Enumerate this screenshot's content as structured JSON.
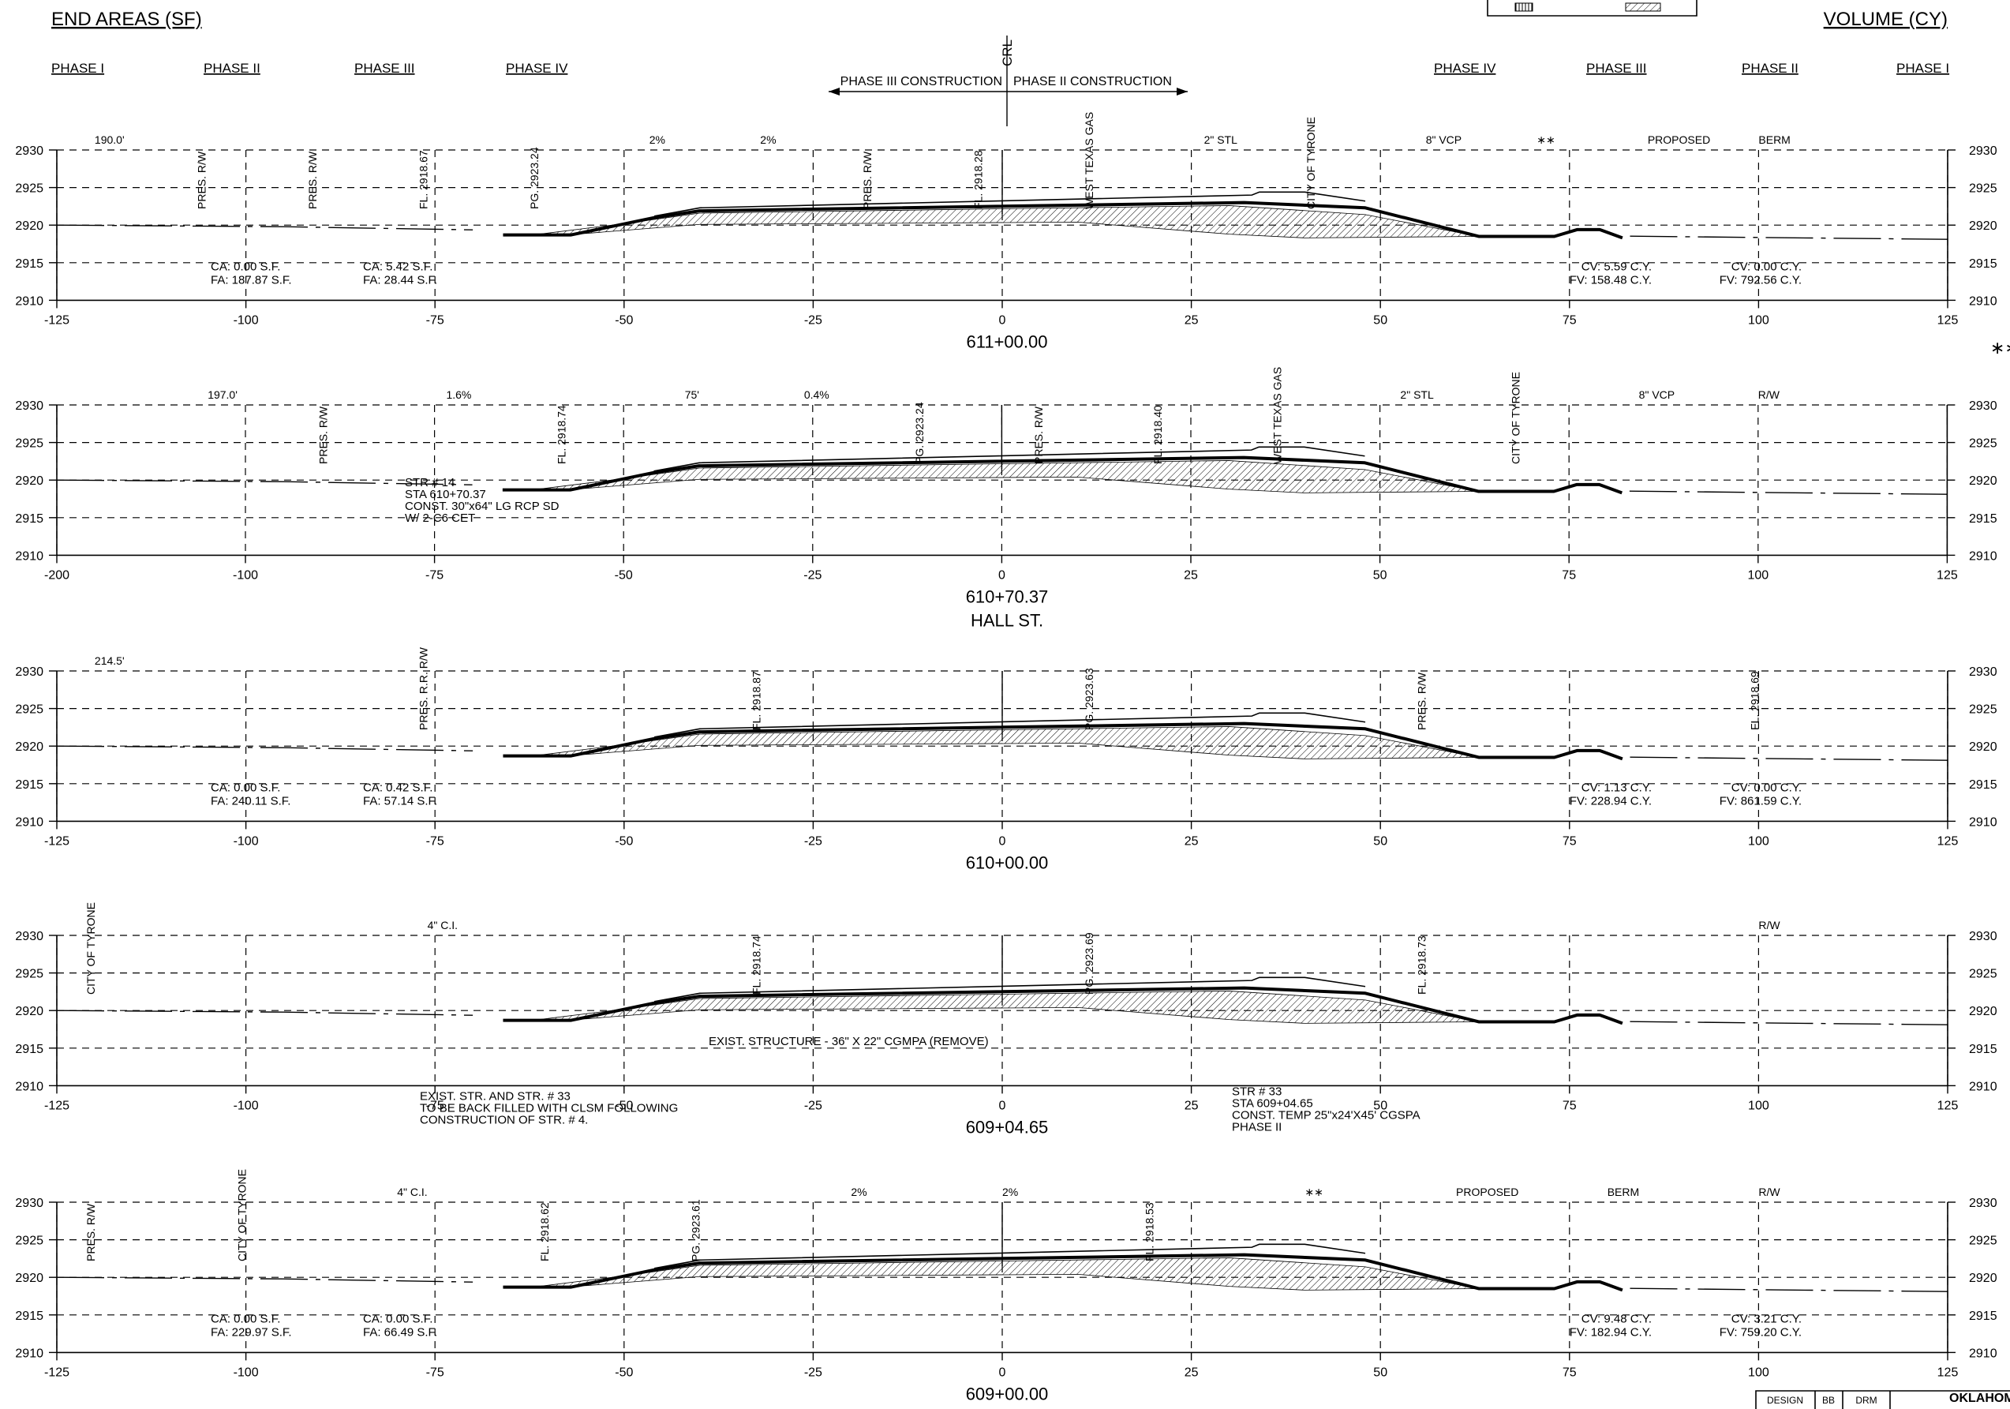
{
  "header": {
    "end_areas": "END AREAS (SF)",
    "volume": "VOLUME (CY)",
    "phases_left": [
      "PHASE I",
      "PHASE II",
      "PHASE III",
      "PHASE IV"
    ],
    "phases_right": [
      "PHASE IV",
      "PHASE III",
      "PHASE II",
      "PHASE I"
    ],
    "crl": "CRL",
    "construction_left": "PHASE III CONSTRUCTION",
    "construction_right": "PHASE II CONSTRUCTION",
    "stray_marks": "∗∗"
  },
  "sections": [
    {
      "station": "611+00.00",
      "subtitle": "",
      "x_ticks": [
        "-125",
        "-100",
        "-75",
        "-50",
        "-25",
        "0",
        "25",
        "50",
        "75",
        "100",
        "125"
      ],
      "y_ticks": [
        "2930",
        "2925",
        "2920",
        "2915",
        "2910"
      ],
      "row_labels": [
        "190.0'",
        "PRES. R/W",
        "PRES. R/W",
        "FL.  2918.67",
        "PG. 2923.24",
        "2%",
        "2%",
        "PRES. R/W",
        "FL.  2918.28",
        "WEST TEXAS GAS",
        "2\" STL",
        "CITY OF TYRONE",
        "8\" VCP",
        "∗∗",
        "PROPOSED",
        "BERM"
      ],
      "end_area_labels": [
        "CA: 0.00 S.F.",
        "FA: 187.87 S.F.",
        "CA: 5.42 S.F.",
        "FA: 28.44 S.F."
      ],
      "volume_labels": [
        "CV: 5.59 C.Y.",
        "FV: 158.48 C.Y.",
        "CV: 0.00 C.Y.",
        "FV: 792.56 C.Y."
      ]
    },
    {
      "station": "610+70.37",
      "subtitle": "HALL ST.",
      "x_ticks": [
        "-200",
        "-100",
        "-75",
        "-50",
        "-25",
        "0",
        "25",
        "50",
        "75",
        "100",
        "125"
      ],
      "y_ticks": [
        "2930",
        "2925",
        "2920",
        "2915",
        "2910"
      ],
      "row_labels": [
        "197.0'",
        "PRES. R/W",
        "1.6%",
        "FL.  2918.74",
        "75'",
        "0.4%",
        "PG. 2923.24",
        "PRES. R/W",
        "FL.  2918.40",
        "WEST TEXAS GAS",
        "2\" STL",
        "CITY OF TYRONE",
        "8\" VCP",
        "R/W"
      ],
      "notes": [
        "STR # 14",
        "STA 610+70.37",
        "CONST. 30\"x64\" LG RCP SD",
        "W/ 2-C6 CET"
      ]
    },
    {
      "station": "610+00.00",
      "subtitle": "",
      "x_ticks": [
        "-125",
        "-100",
        "-75",
        "-50",
        "-25",
        "0",
        "25",
        "50",
        "75",
        "100",
        "125"
      ],
      "y_ticks": [
        "2930",
        "2925",
        "2920",
        "2915",
        "2910"
      ],
      "row_labels": [
        "214.5'",
        "PRES. R.R. R/W",
        "FL.  2918.87",
        "PG. 2923.63",
        "PRES. R/W",
        "FL.  2918.69"
      ],
      "end_area_labels": [
        "CA: 0.00 S.F.",
        "FA: 240.11 S.F.",
        "CA: 0.42 S.F.",
        "FA: 57.14 S.F."
      ],
      "volume_labels": [
        "CV: 1.13 C.Y.",
        "FV: 228.94 C.Y.",
        "CV: 0.00 C.Y.",
        "FV: 861.59 C.Y."
      ]
    },
    {
      "station": "609+04.65",
      "subtitle": "",
      "x_ticks": [
        "-125",
        "-100",
        "-75",
        "-50",
        "-25",
        "0",
        "25",
        "50",
        "75",
        "100",
        "125"
      ],
      "y_ticks": [
        "2930",
        "2925",
        "2920",
        "2915",
        "2910"
      ],
      "row_labels": [
        "CITY OF TYRONE",
        "4\" C.I.",
        "FL.  2918.74",
        "PG. 2923.69",
        "FL.  2918.73",
        "R/W"
      ],
      "notes": [
        "EXIST. STRUCTURE - 36\" X 22\" CGMPA (REMOVE)"
      ],
      "notes_left": [
        "EXIST. STR. AND STR. # 33",
        "TO BE BACK FILLED WITH CLSM FOLLOWING",
        "CONSTRUCTION OF STR. # 4."
      ],
      "notes_right": [
        "STR # 33",
        "STA 609+04.65",
        "CONST. TEMP 25\"x24'X45' CGSPA",
        "PHASE II"
      ]
    },
    {
      "station": "609+00.00",
      "subtitle": "",
      "x_ticks": [
        "-125",
        "-100",
        "-75",
        "-50",
        "-25",
        "0",
        "25",
        "50",
        "75",
        "100",
        "125"
      ],
      "y_ticks": [
        "2930",
        "2925",
        "2920",
        "2915",
        "2910"
      ],
      "row_labels": [
        "PRES. R/W",
        "CITY OF TYRONE",
        "4\" C.I.",
        "FL.  2918.62",
        "PG. 2923.61",
        "2%",
        "2%",
        "FL.  2918.53",
        "∗∗",
        "PROPOSED",
        "BERM",
        "R/W"
      ],
      "end_area_labels": [
        "CA: 0.00 S.F.",
        "FA: 229.97 S.F.",
        "CA: 0.00 S.F.",
        "FA: 66.49 S.F."
      ],
      "volume_labels": [
        "CV:   9.48 C.Y.",
        "FV: 182.94 C.Y.",
        "CV:   3.21 C.Y.",
        "FV: 759.20 C.Y."
      ]
    }
  ],
  "title_block": {
    "cells": [
      "DESIGN",
      "BB",
      "DRM",
      "OKLAHOMA"
    ]
  },
  "colors": {
    "ink": "#000000",
    "paper": "#ffffff"
  }
}
